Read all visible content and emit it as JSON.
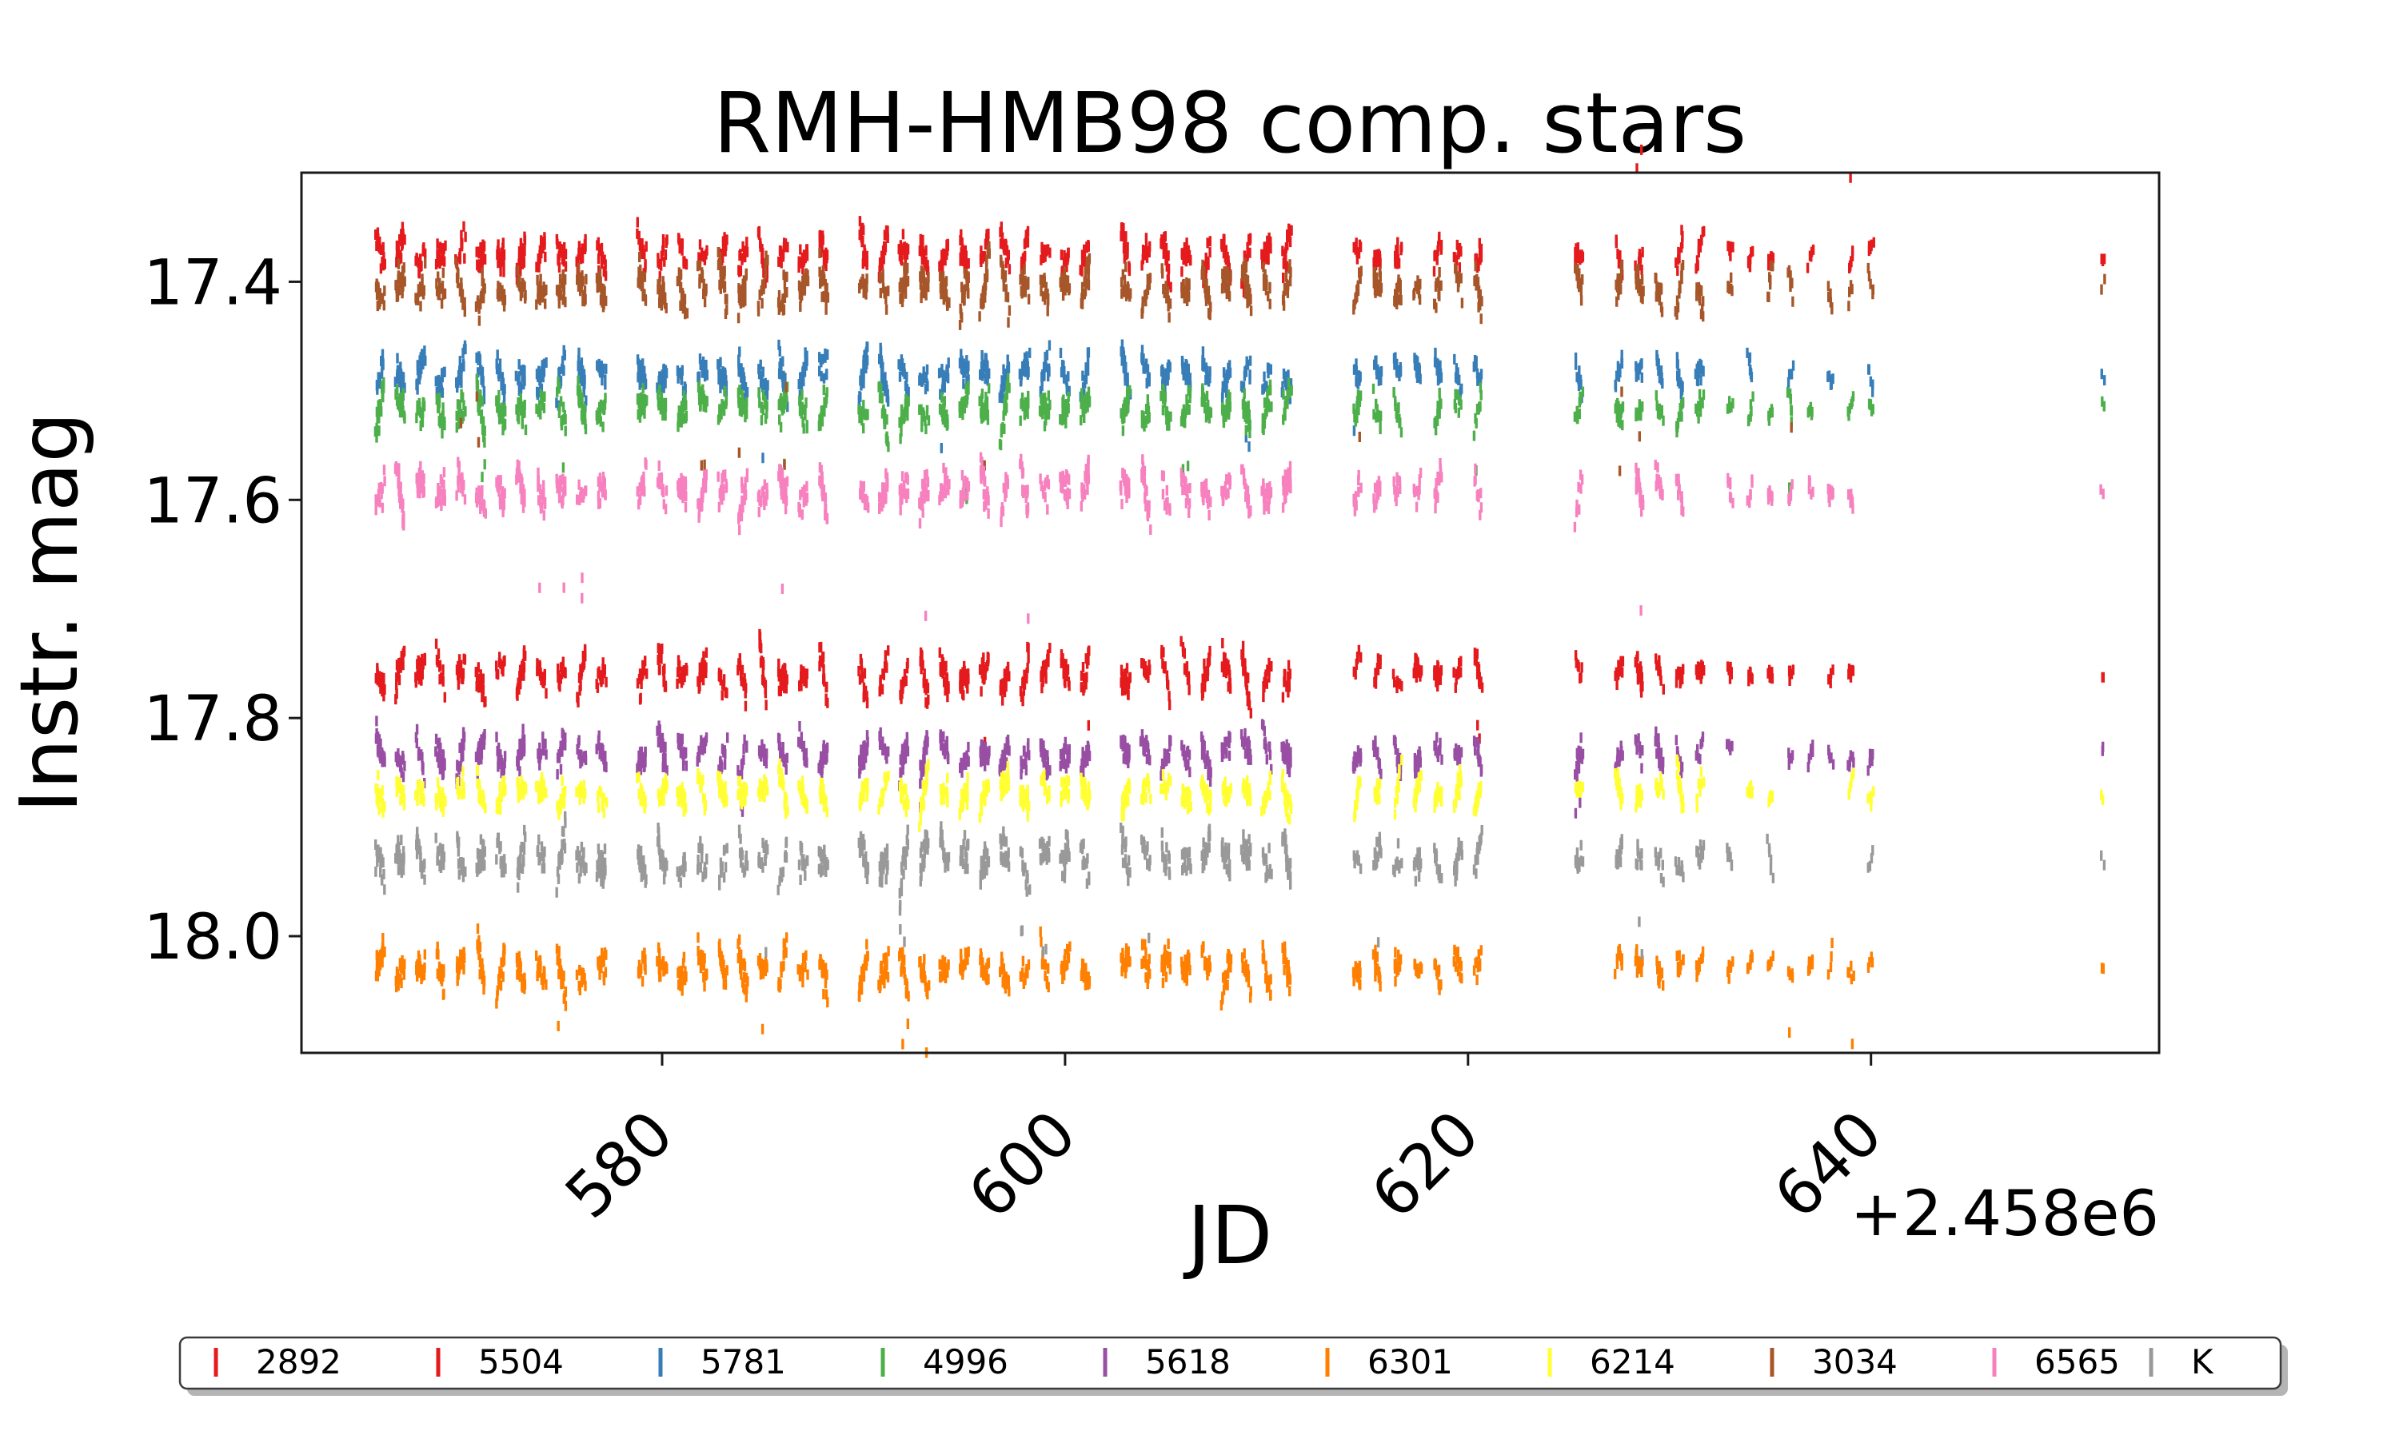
{
  "title": "RMH-HMB98 comp. stars",
  "axes": {
    "xlabel": "JD",
    "ylabel": "Instr. mag",
    "offset_text": "+2.458e6"
  },
  "chart_data": {
    "type": "scatter",
    "title": "RMH-HMB98 comp. stars",
    "xlabel": "JD",
    "x_offset_text": "+2.458e6",
    "ylabel": "Instr. mag",
    "marker": "vertical-dash",
    "grid": false,
    "y_axis_inverted_magnitudes": true,
    "xlim": [
      562.1,
      654.3
    ],
    "ylim": [
      17.3,
      18.107
    ],
    "x_ticks": [
      {
        "value": 580,
        "label": "580"
      },
      {
        "value": 600,
        "label": "600"
      },
      {
        "value": 620,
        "label": "620"
      },
      {
        "value": 640,
        "label": "640"
      }
    ],
    "y_ticks": [
      {
        "value": 17.4,
        "label": "17.4"
      },
      {
        "value": 17.6,
        "label": "17.6"
      },
      {
        "value": 17.8,
        "label": "17.8"
      },
      {
        "value": 18.0,
        "label": "18.0"
      }
    ],
    "legend": {
      "position": "bottom-outside",
      "ncol": 10,
      "shadow": true,
      "border_color": "#3c3c3c",
      "shadow_color": "#b4b4b4",
      "labels": [
        "2892",
        "5504",
        "5781",
        "4996",
        "5618",
        "6301",
        "6214",
        "3034",
        "6565",
        "K"
      ]
    },
    "series": [
      {
        "name": "2892",
        "color": "#e41a1c",
        "mean_mag": 17.375,
        "night_scatter_mag": 0.024,
        "outlier_prob": 0.05,
        "outlier_offset_lo": -0.1,
        "outlier_offset_hi": -0.06
      },
      {
        "name": "5504",
        "color": "#e41a1c",
        "mean_mag": 17.76,
        "night_scatter_mag": 0.024,
        "outlier_prob": 0.05,
        "outlier_offset_lo": 0.04,
        "outlier_offset_hi": 0.07
      },
      {
        "name": "5781",
        "color": "#377eb8",
        "mean_mag": 17.485,
        "night_scatter_mag": 0.024,
        "outlier_prob": 0.05,
        "outlier_offset_lo": 0.05,
        "outlier_offset_hi": 0.08
      },
      {
        "name": "4996",
        "color": "#4daf4a",
        "mean_mag": 17.516,
        "night_scatter_mag": 0.024,
        "outlier_prob": 0.07,
        "outlier_offset_lo": 0.05,
        "outlier_offset_hi": 0.09
      },
      {
        "name": "5618",
        "color": "#984ea3",
        "mean_mag": 17.833,
        "night_scatter_mag": 0.022,
        "outlier_prob": 0.04,
        "outlier_offset_lo": 0.04,
        "outlier_offset_hi": 0.06
      },
      {
        "name": "6301",
        "color": "#ff7f00",
        "mean_mag": 18.03,
        "night_scatter_mag": 0.026,
        "outlier_prob": 0.07,
        "outlier_offset_lo": 0.05,
        "outlier_offset_hi": 0.08
      },
      {
        "name": "6214",
        "color": "#ffff33",
        "mean_mag": 17.868,
        "night_scatter_mag": 0.022,
        "outlier_prob": 0.03,
        "outlier_offset_lo": 0.03,
        "outlier_offset_hi": 0.05
      },
      {
        "name": "3034",
        "color": "#a65628",
        "mean_mag": 17.406,
        "night_scatter_mag": 0.028,
        "outlier_prob": 0.12,
        "outlier_offset_lo": 0.09,
        "outlier_offset_hi": 0.17
      },
      {
        "name": "6565",
        "color": "#f781bf",
        "mean_mag": 17.592,
        "night_scatter_mag": 0.028,
        "outlier_prob": 0.09,
        "outlier_offset_lo": 0.07,
        "outlier_offset_hi": 0.13
      },
      {
        "name": "K",
        "color": "#999999",
        "mean_mag": 17.93,
        "night_scatter_mag": 0.028,
        "outlier_prob": 0.1,
        "outlier_offset_lo": 0.05,
        "outlier_offset_hi": 0.09
      }
    ],
    "night_groups": [
      {
        "quality": "dense",
        "jds": [
          566,
          567,
          568,
          569,
          570,
          571,
          572,
          573,
          574,
          575,
          576,
          577
        ]
      },
      {
        "quality": "dense",
        "jds": [
          579,
          580,
          581,
          582,
          583,
          584,
          585,
          586,
          587,
          588
        ]
      },
      {
        "quality": "dense",
        "jds": [
          590,
          591,
          592,
          593,
          594,
          595,
          596,
          597,
          598,
          599,
          600,
          601
        ]
      },
      {
        "quality": "dense",
        "jds": [
          603,
          604,
          605,
          606,
          607,
          608,
          609,
          610,
          611
        ]
      },
      {
        "quality": "mid",
        "jds": [
          614.5,
          615.5,
          616.5,
          617.5,
          618.5,
          619.5,
          620.5
        ]
      },
      {
        "quality": "mid",
        "jds": [
          625.5
        ]
      },
      {
        "quality": "mid",
        "jds": [
          627.5,
          628.5,
          629.5,
          630.5,
          631.5
        ]
      },
      {
        "quality": "sparse",
        "jds": [
          633,
          634,
          635,
          636,
          637,
          638,
          639,
          640
        ]
      },
      {
        "quality": "single",
        "jds": [
          651.5
        ]
      }
    ],
    "quality_params": {
      "dense": {
        "points": 20,
        "width_days": 0.4,
        "amp_scale": 1.0,
        "skip_prob": 0.0
      },
      "mid": {
        "points": 14,
        "width_days": 0.32,
        "amp_scale": 0.85,
        "skip_prob": 0.06
      },
      "sparse": {
        "points": 6,
        "width_days": 0.2,
        "amp_scale": 0.55,
        "skip_prob": 0.28
      },
      "single": {
        "points": 2,
        "width_days": 0.1,
        "amp_scale": 0.2,
        "skip_prob": 0.0
      }
    },
    "seed": 20180566
  }
}
